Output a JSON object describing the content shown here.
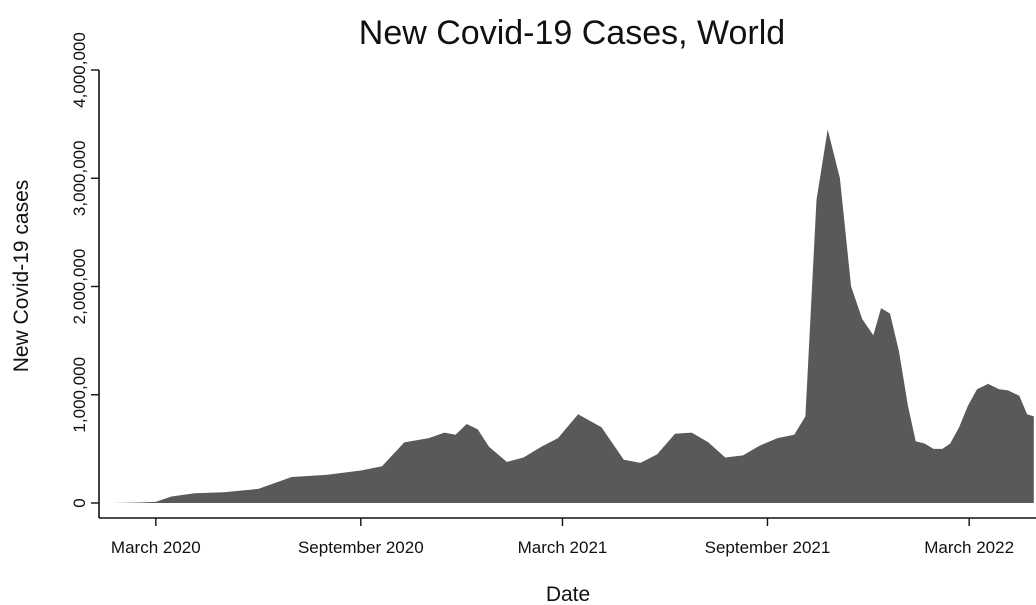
{
  "chart_data": {
    "type": "area",
    "title": "New Covid-19 Cases, World",
    "xlabel": "Date",
    "ylabel": "New Covid-19 cases",
    "x_ticks": [
      {
        "date": "2020-03-01",
        "label": "March 2020"
      },
      {
        "date": "2020-09-01",
        "label": "September 2020"
      },
      {
        "date": "2021-03-01",
        "label": "March 2021"
      },
      {
        "date": "2021-09-01",
        "label": "September 2021"
      },
      {
        "date": "2022-03-01",
        "label": "March 2022"
      }
    ],
    "y_ticks": [
      {
        "value": 0,
        "label": "0"
      },
      {
        "value": 1000000,
        "label": "1,000,000"
      },
      {
        "value": 2000000,
        "label": "2,000,000"
      },
      {
        "value": 3000000,
        "label": "3,000,000"
      },
      {
        "value": 4000000,
        "label": "4,000,000"
      }
    ],
    "xlim": [
      "2020-01-10",
      "2022-04-30"
    ],
    "ylim": [
      0,
      4000000
    ],
    "grid": false,
    "fill_color": "#595959",
    "series": [
      {
        "x": [
          "2020-01-22",
          "2020-02-15",
          "2020-03-01",
          "2020-03-15",
          "2020-04-05",
          "2020-05-01",
          "2020-06-01",
          "2020-07-01",
          "2020-08-01",
          "2020-09-01",
          "2020-09-20",
          "2020-10-10",
          "2020-11-01",
          "2020-11-15",
          "2020-11-25",
          "2020-12-05",
          "2020-12-15",
          "2020-12-25",
          "2021-01-10",
          "2021-01-25",
          "2021-02-10",
          "2021-02-25",
          "2021-03-15",
          "2021-04-05",
          "2021-04-25",
          "2021-05-10",
          "2021-05-25",
          "2021-06-10",
          "2021-06-25",
          "2021-07-10",
          "2021-07-25",
          "2021-08-10",
          "2021-08-25",
          "2021-09-10",
          "2021-09-25",
          "2021-10-05",
          "2021-10-15",
          "2021-10-25",
          "2021-11-05",
          "2021-11-15",
          "2021-11-25",
          "2021-12-05",
          "2021-12-12",
          "2021-12-20",
          "2021-12-28",
          "2022-01-05",
          "2022-01-12",
          "2022-01-20",
          "2022-01-28",
          "2022-02-05",
          "2022-02-12",
          "2022-02-20",
          "2022-02-28",
          "2022-03-08",
          "2022-03-18",
          "2022-03-28",
          "2022-04-05",
          "2022-04-15",
          "2022-04-22",
          "2022-04-28"
        ],
        "values": [
          0,
          5000,
          10000,
          60000,
          90000,
          100000,
          130000,
          240000,
          260000,
          300000,
          340000,
          560000,
          600000,
          650000,
          630000,
          730000,
          680000,
          520000,
          380000,
          420000,
          520000,
          600000,
          820000,
          700000,
          400000,
          370000,
          450000,
          640000,
          650000,
          560000,
          420000,
          440000,
          530000,
          600000,
          630000,
          800000,
          2800000,
          3450000,
          3000000,
          2000000,
          1700000,
          1550000,
          1800000,
          1750000,
          1400000,
          900000,
          570000,
          550000,
          500000,
          500000,
          550000,
          700000,
          900000,
          1050000,
          1100000,
          1050000,
          1040000,
          990000,
          820000,
          800000
        ]
      }
    ]
  }
}
